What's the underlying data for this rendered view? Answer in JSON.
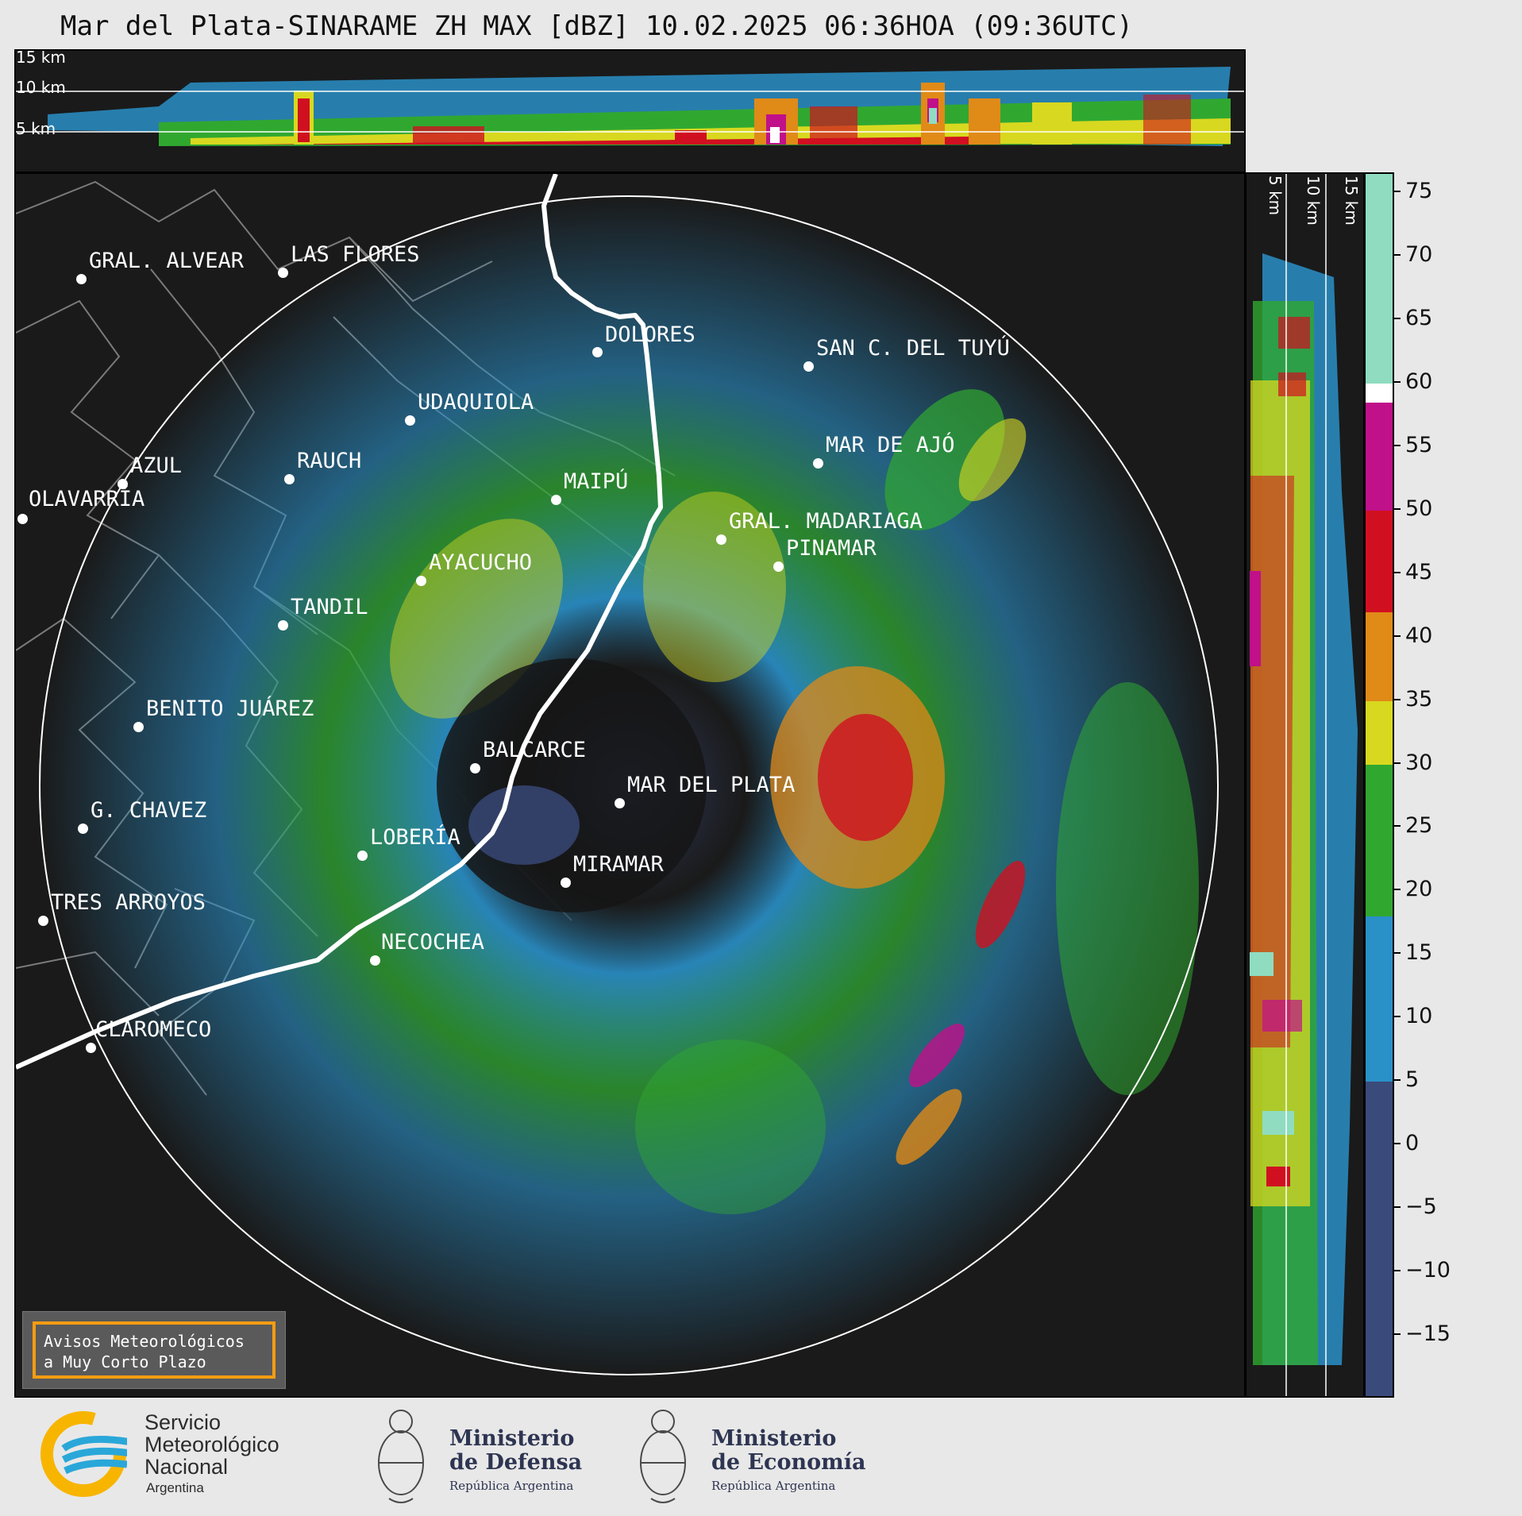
{
  "title": "Mar del Plata-SINARAME ZH MAX [dBZ] 10.02.2025 06:36HOA (09:36UTC)",
  "top_panel": {
    "height_labels": [
      "15 km",
      "10 km",
      "5 km"
    ]
  },
  "right_panel": {
    "height_labels": [
      "5 km",
      "10 km",
      "15 km"
    ]
  },
  "cities": [
    {
      "name": "GRAL. ALVEAR"
    },
    {
      "name": "LAS FLORES"
    },
    {
      "name": "DOLORES"
    },
    {
      "name": "SAN C. DEL TUYÚ"
    },
    {
      "name": "UDAQUIOLA"
    },
    {
      "name": "MAR DE AJÓ"
    },
    {
      "name": "AZUL"
    },
    {
      "name": "RAUCH"
    },
    {
      "name": "MAIPÚ"
    },
    {
      "name": "OLAVARRÍA"
    },
    {
      "name": "GRAL. MADARIAGA"
    },
    {
      "name": "PINAMAR"
    },
    {
      "name": "AYACUCHO"
    },
    {
      "name": "TANDIL"
    },
    {
      "name": "BENITO JUÁREZ"
    },
    {
      "name": "BALCARCE"
    },
    {
      "name": "MAR DEL PLATA"
    },
    {
      "name": "G. CHAVEZ"
    },
    {
      "name": "LOBERÍA"
    },
    {
      "name": "MIRAMAR"
    },
    {
      "name": "TRES ARROYOS"
    },
    {
      "name": "NECOCHEA"
    },
    {
      "name": "CLAROMECO"
    }
  ],
  "colorbar": {
    "unit": "dBZ",
    "ticks": [
      "75",
      "70",
      "65",
      "60",
      "55",
      "50",
      "45",
      "40",
      "35",
      "30",
      "25",
      "20",
      "15",
      "10",
      "5",
      "0",
      "−5",
      "−10",
      "−15"
    ],
    "segments": [
      {
        "from": 76.5,
        "to": 60,
        "color": "#8fdcc0"
      },
      {
        "from": 60,
        "to": 58.5,
        "color": "#ffffff"
      },
      {
        "from": 58.5,
        "to": 50,
        "color": "#c0108a"
      },
      {
        "from": 50,
        "to": 42,
        "color": "#d01020"
      },
      {
        "from": 42,
        "to": 35,
        "color": "#e08a18"
      },
      {
        "from": 35,
        "to": 30,
        "color": "#d8d820"
      },
      {
        "from": 30,
        "to": 18,
        "color": "#30a830"
      },
      {
        "from": 18,
        "to": 5,
        "color": "#2a90c8"
      },
      {
        "from": 5,
        "to": -20,
        "color": "#3a4a7a"
      }
    ]
  },
  "warning_box": {
    "line1": "Avisos Meteorológicos",
    "line2": "a Muy Corto Plazo"
  },
  "footer": {
    "smn": {
      "line1": "Servicio",
      "line2": "Meteorológico",
      "line3": "Nacional",
      "line4": "Argentina"
    },
    "defensa": {
      "line1": "Ministerio",
      "line2": "de Defensa",
      "sub": "República Argentina"
    },
    "economia": {
      "line1": "Ministerio",
      "line2": "de Economía",
      "sub": "República Argentina"
    }
  },
  "colors": {
    "background": "#1a1a1a",
    "coast": "#ffffff",
    "borders": "#7a7a7a",
    "accent_orange": "#f39c12",
    "smn_blue": "#2aa7d9",
    "smn_yellow": "#f7b500"
  }
}
